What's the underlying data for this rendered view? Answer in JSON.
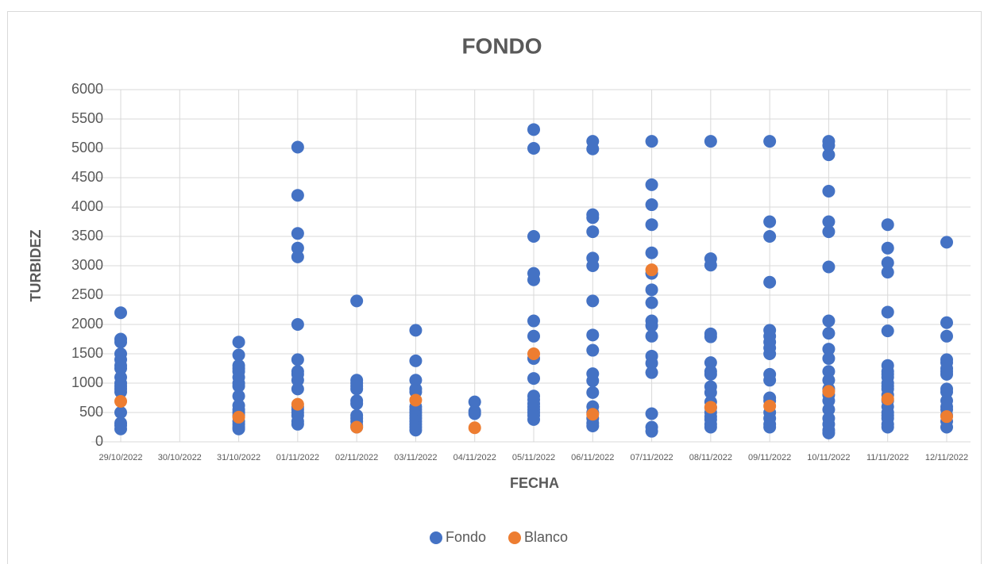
{
  "chart_data": {
    "type": "scatter",
    "title": "FONDO",
    "x_label": "FECHA",
    "y_label": "TURBIDEZ",
    "categories": [
      "29/10/2022",
      "30/10/2022",
      "31/10/2022",
      "01/11/2022",
      "02/11/2022",
      "03/11/2022",
      "04/11/2022",
      "05/11/2022",
      "06/11/2022",
      "07/11/2022",
      "08/11/2022",
      "09/11/2022",
      "10/11/2022",
      "11/11/2022",
      "12/11/2022"
    ],
    "ylim": [
      0,
      6000
    ],
    "yticks": [
      0,
      500,
      1000,
      1500,
      2000,
      2500,
      3000,
      3500,
      4000,
      4500,
      5000,
      5500,
      6000
    ],
    "grid": true,
    "legend": "bottom",
    "series": [
      {
        "name": "Fondo",
        "color": "#4472c4",
        "values": [
          [
            2200,
            1750,
            1700,
            1500,
            1400,
            1300,
            1250,
            1100,
            1000,
            950,
            900,
            850,
            500,
            320,
            280,
            220
          ],
          [],
          [
            1700,
            1480,
            1300,
            1250,
            1200,
            1100,
            1000,
            950,
            780,
            620,
            550,
            500,
            450,
            350,
            300,
            250,
            220
          ],
          [
            5020,
            4200,
            3550,
            3300,
            3150,
            2000,
            1400,
            1200,
            1150,
            1050,
            900,
            600,
            550,
            500,
            450,
            350,
            300
          ],
          [
            2400,
            1050,
            1000,
            950,
            900,
            700,
            650,
            450,
            400,
            350,
            280,
            250
          ],
          [
            1900,
            1380,
            1050,
            900,
            850,
            600,
            550,
            500,
            450,
            400,
            350,
            300,
            250,
            200
          ],
          [
            680,
            520,
            480
          ],
          [
            5320,
            5000,
            3500,
            2870,
            2760,
            2060,
            1800,
            1420,
            1080,
            780,
            720,
            650,
            600,
            550,
            500,
            450,
            380
          ],
          [
            5120,
            4990,
            3870,
            3820,
            3580,
            3130,
            3000,
            2400,
            1820,
            1560,
            1160,
            1040,
            840,
            600,
            500,
            400,
            320,
            270
          ],
          [
            5120,
            4380,
            4040,
            3700,
            3220,
            2870,
            2590,
            2370,
            2060,
            1980,
            1800,
            1460,
            1340,
            1180,
            480,
            250,
            180
          ],
          [
            5120,
            3120,
            3010,
            1840,
            1790,
            1350,
            1200,
            1150,
            940,
            840,
            680,
            580,
            500,
            430,
            380,
            300,
            250
          ],
          [
            5120,
            3750,
            3500,
            2720,
            1900,
            1800,
            1700,
            1600,
            1500,
            1150,
            1050,
            750,
            700,
            500,
            400,
            300,
            250
          ],
          [
            5120,
            5050,
            4890,
            4270,
            3750,
            3580,
            2980,
            2060,
            1850,
            1580,
            1420,
            1200,
            1050,
            900,
            800,
            700,
            550,
            400,
            300,
            200,
            150
          ],
          [
            3700,
            3300,
            3050,
            2890,
            2210,
            1890,
            1300,
            1200,
            1150,
            1100,
            1000,
            950,
            900,
            800,
            700,
            600,
            500,
            450,
            400,
            300,
            250
          ],
          [
            3400,
            2030,
            1800,
            1400,
            1350,
            1250,
            1200,
            1150,
            900,
            850,
            700,
            600,
            550,
            450,
            350,
            250
          ]
        ]
      },
      {
        "name": "Blanco",
        "color": "#ed7d31",
        "values": [
          [
            690
          ],
          [],
          [
            420
          ],
          [
            640
          ],
          [
            250
          ],
          [
            710
          ],
          [
            240
          ],
          [
            1500
          ],
          [
            470
          ],
          [
            2930
          ],
          [
            590
          ],
          [
            610
          ],
          [
            860
          ],
          [
            730
          ],
          [
            430
          ]
        ]
      }
    ]
  }
}
